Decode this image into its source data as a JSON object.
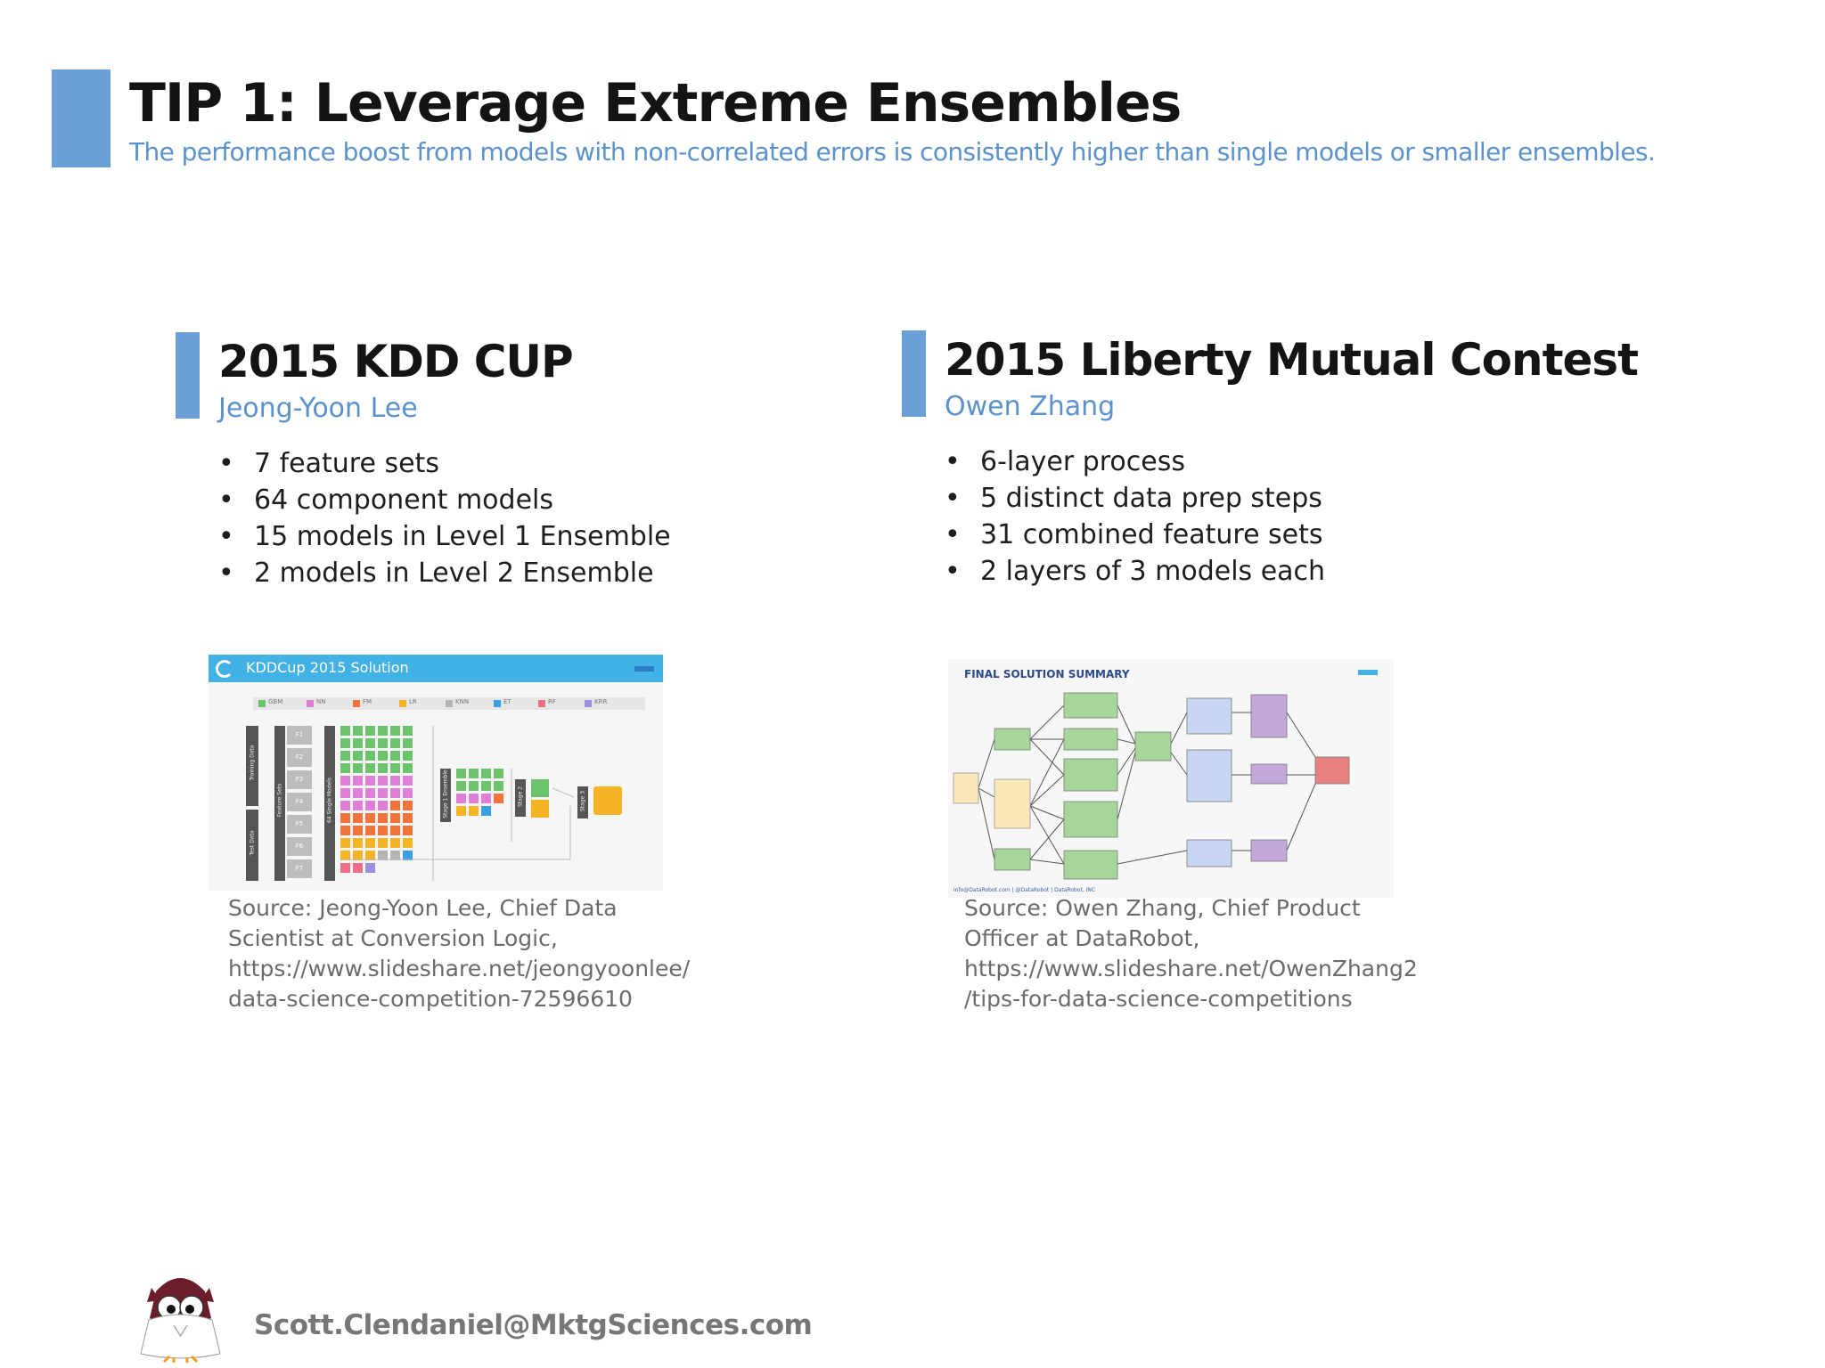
{
  "header": {
    "title": "TIP 1: Leverage Extreme Ensembles",
    "subtitle": "The performance boost from models with non-correlated errors is consistently higher than single models or smaller ensembles."
  },
  "left": {
    "heading": "2015 KDD CUP",
    "author": "Jeong-Yoon Lee",
    "bullets": [
      "7 feature sets",
      "64 component models",
      "15 models in Level 1 Ensemble",
      "2 models in Level 2 Ensemble"
    ],
    "figure": {
      "banner_title": "KDDCup 2015 Solution",
      "legend": [
        "GBM",
        "NN",
        "FM",
        "LR",
        "KNN",
        "ET",
        "RF",
        "KRR"
      ],
      "side_labels": [
        "Training Data",
        "Test Data",
        "Feature Sets",
        "64 Single Models",
        "Stage 1 Ensemble",
        "Stage 2",
        "Stage 3"
      ],
      "feature_sets": [
        "F1",
        "F2",
        "F3",
        "F4",
        "F5",
        "F6",
        "F7"
      ]
    },
    "source_lines": [
      "Source: Jeong-Yoon Lee, Chief Data",
      "Scientist at Conversion Logic,",
      "https://www.slideshare.net/jeongyoonlee/",
      "data-science-competition-72596610"
    ]
  },
  "right": {
    "heading": "2015 Liberty Mutual Contest",
    "author": "Owen Zhang",
    "bullets": [
      "6-layer process",
      "5 distinct data prep steps",
      "31 combined feature sets",
      "2 layers of 3 models each"
    ],
    "figure": {
      "title": "FINAL SOLUTION SUMMARY",
      "footer": "info@DataRobot.com | @DataRobot | DataRobot, INC"
    },
    "source_lines": [
      "Source: Owen Zhang, Chief Product",
      "Officer at DataRobot,",
      "https://www.slideshare.net/OwenZhang2",
      "/tips-for-data-science-competitions"
    ]
  },
  "footer": {
    "email": "Scott.Clendaniel@MktgSciences.com"
  },
  "colors": {
    "accent": "#6a9fd8",
    "kdd_banner": "#42b1e6",
    "gbm": "#6cc36c",
    "nn": "#e07fd6",
    "fm": "#f0743c",
    "lr": "#f5b326",
    "knn": "#b5b5b5",
    "et": "#3aa0e0",
    "rf": "#ef6f86",
    "krr": "#9f8fe0"
  }
}
